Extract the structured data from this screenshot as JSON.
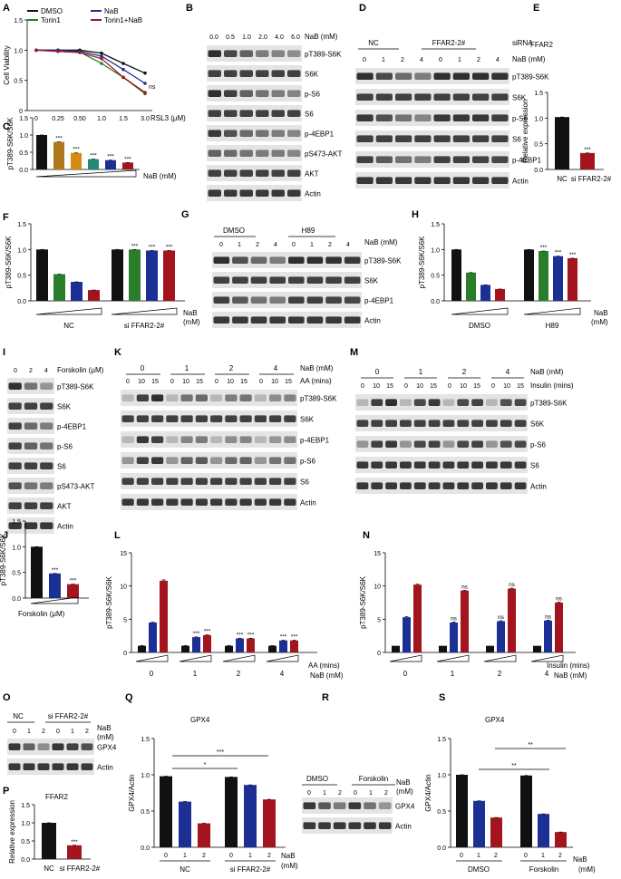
{
  "colors": {
    "black": "#111111",
    "blue": "#1c2f94",
    "red": "#a3141e",
    "green": "#2a7d2a",
    "brown": "#b07a1c",
    "teal": "#1f8a78",
    "gray": "#555555"
  },
  "panel_letters": {
    "A": "A",
    "B": "B",
    "C": "C",
    "D": "D",
    "E": "E",
    "F": "F",
    "G": "G",
    "H": "H",
    "I": "I",
    "J": "J",
    "K": "K",
    "L": "L",
    "M": "M",
    "N": "N",
    "O": "O",
    "P": "P",
    "Q": "Q",
    "R": "R",
    "S": "S"
  },
  "panelA": {
    "legend": [
      "DMSO",
      "Torin1",
      "NaB",
      "Torin1+NaB"
    ],
    "ylabel": "Cell Viability",
    "xlabel": "RSL3 (μM)",
    "ns": "ns",
    "chart_data": {
      "type": "line",
      "x": [
        "0",
        "0.25",
        "0.50",
        "1.0",
        "1.5",
        "3.0"
      ],
      "xlabel": "RSL3 (μM)",
      "ylabel": "Cell Viability",
      "ylim": [
        0,
        1.5
      ],
      "yticks": [
        "0",
        "0.5",
        "1.0",
        "1.5"
      ],
      "series": [
        {
          "name": "DMSO",
          "values": [
            1.0,
            1.0,
            1.0,
            0.95,
            0.78,
            0.62
          ]
        },
        {
          "name": "Torin1",
          "values": [
            1.0,
            0.98,
            0.97,
            0.78,
            0.55,
            0.28
          ]
        },
        {
          "name": "NaB",
          "values": [
            1.0,
            1.0,
            0.98,
            0.9,
            0.68,
            0.45
          ]
        },
        {
          "name": "Torin1+NaB",
          "values": [
            1.0,
            0.98,
            0.96,
            0.86,
            0.55,
            0.3
          ]
        }
      ]
    }
  },
  "panelB": {
    "header": [
      "0.0",
      "0.5",
      "1.0",
      "2.0",
      "4.0",
      "6.0"
    ],
    "unit": "NaB (mM)",
    "bands": [
      "pT389-S6K",
      "S6K",
      "p-S6",
      "S6",
      "p-4EBP1",
      "pS473-AKT",
      "AKT",
      "Actin"
    ]
  },
  "panelC": {
    "ylabel": "pT389-S6K/S6K",
    "xlabel": "NaB (mM)",
    "yticks": [
      "0.0",
      "0.5",
      "1.0",
      "1.5"
    ],
    "stars": [
      "***",
      "***",
      "***",
      "***",
      "***"
    ],
    "chart_data": {
      "type": "bar",
      "values": [
        1.0,
        0.8,
        0.48,
        0.3,
        0.27,
        0.2
      ],
      "ylim": [
        0,
        1.5
      ]
    }
  },
  "panelD": {
    "siRNA": "siRNA",
    "groups": [
      "NC",
      "FFAR2-2#"
    ],
    "unit": "NaB (mM)",
    "lanes": [
      "0",
      "1",
      "2",
      "4",
      "0",
      "1",
      "2",
      "4"
    ],
    "bands": [
      "pT389-S6K",
      "S6K",
      "p-S6",
      "S6",
      "p-4EBP1",
      "Actin"
    ]
  },
  "panelE": {
    "title": "FFAR2",
    "ylabel": "Relative expression",
    "yticks": [
      "0.0",
      "0.5",
      "1.0",
      "1.5"
    ],
    "categories": [
      "NC",
      "si FFAR2-2#"
    ],
    "stars": "***",
    "chart_data": {
      "type": "bar",
      "categories": [
        "NC",
        "si FFAR2-2#"
      ],
      "values": [
        1.02,
        0.32
      ],
      "ylim": [
        0,
        1.5
      ]
    }
  },
  "panelF": {
    "ylabel": "pT389-S6K/S6K",
    "yticks": [
      "0.0",
      "0.5",
      "1.0",
      "1.5"
    ],
    "groups": [
      "NC",
      "si FFAR2-2#"
    ],
    "unit1": "NaB",
    "unit2": "(mM)",
    "stars": [
      "***",
      "***",
      "***"
    ],
    "chart_data": {
      "type": "bar",
      "series": [
        {
          "name": "NC",
          "values": [
            1.0,
            0.52,
            0.37,
            0.21
          ]
        },
        {
          "name": "si FFAR2-2#",
          "values": [
            1.0,
            1.0,
            0.98,
            0.98
          ]
        }
      ],
      "ylim": [
        0,
        1.5
      ]
    }
  },
  "panelG": {
    "groups": [
      "DMSO",
      "H89"
    ],
    "unit": "NaB (mM)",
    "lanes": [
      "0",
      "1",
      "2",
      "4",
      "0",
      "1",
      "2",
      "4"
    ],
    "bands": [
      "pT389-S6K",
      "S6K",
      "p-4EBP1",
      "Actin"
    ]
  },
  "panelH": {
    "ylabel": "pT389-S6K/S6K",
    "yticks": [
      "0.0",
      "0.5",
      "1.0",
      "1.5"
    ],
    "groups": [
      "DMSO",
      "H89"
    ],
    "unit1": "NaB",
    "unit2": "(mM)",
    "stars": [
      "***",
      "***",
      "***"
    ],
    "chart_data": {
      "type": "bar",
      "series": [
        {
          "name": "DMSO",
          "values": [
            1.0,
            0.55,
            0.31,
            0.23
          ]
        },
        {
          "name": "H89",
          "values": [
            1.0,
            0.97,
            0.87,
            0.83
          ]
        }
      ],
      "ylim": [
        0,
        1.5
      ]
    }
  },
  "panelI": {
    "unit": "Forskolin (μM)",
    "lanes": [
      "0",
      "2",
      "4"
    ],
    "bands": [
      "pT389-S6K",
      "S6K",
      "p-4EBP1",
      "p-S6",
      "S6",
      "pS473-AKT",
      "AKT",
      "Actin"
    ]
  },
  "panelJ": {
    "ylabel": "pT389-S6K/S6K",
    "xlabel": "Forskolin (μM)",
    "yticks": [
      "0.0",
      "0.5",
      "1.0",
      "1.5"
    ],
    "stars": [
      "***",
      "***"
    ],
    "chart_data": {
      "type": "bar",
      "values": [
        1.0,
        0.48,
        0.27
      ],
      "ylim": [
        0,
        1.5
      ]
    }
  },
  "panelK": {
    "nab": [
      "0",
      "1",
      "2",
      "4"
    ],
    "nab_unit": "NaB (mM)",
    "aa_unit": "AA (mins)",
    "times": [
      "0",
      "10",
      "15"
    ],
    "bands": [
      "pT389-S6K",
      "S6K",
      "p-4EBP1",
      "p-S6",
      "S6",
      "Actin"
    ]
  },
  "panelL": {
    "ylabel": "pT389-S6K/S6K",
    "yticks": [
      "0",
      "5",
      "10",
      "15"
    ],
    "groups": [
      "0",
      "1",
      "2",
      "4"
    ],
    "unit1": "AA (mins)",
    "unit2": "NaB (mM)",
    "stars": [
      "***",
      "***",
      "***",
      "***",
      "***",
      "***"
    ],
    "chart_data": {
      "type": "bar",
      "categories": [
        "0",
        "1",
        "2",
        "4"
      ],
      "series": [
        {
          "name": "0 min",
          "values": [
            1,
            1,
            1,
            1
          ]
        },
        {
          "name": "10 min",
          "values": [
            4.5,
            2.3,
            2.1,
            1.8
          ]
        },
        {
          "name": "15 min",
          "values": [
            10.8,
            2.6,
            2.1,
            1.8
          ]
        }
      ],
      "ylim": [
        0,
        15
      ]
    }
  },
  "panelM": {
    "nab": [
      "0",
      "1",
      "2",
      "4"
    ],
    "nab_unit": "NaB (mM)",
    "ins_unit": "Insulin (mins)",
    "times": [
      "0",
      "10",
      "15"
    ],
    "bands": [
      "pT389-S6K",
      "S6K",
      "p-S6",
      "S6",
      "Actin"
    ]
  },
  "panelN": {
    "ylabel": "pT389-S6K/S6K",
    "yticks": [
      "0",
      "5",
      "10",
      "15"
    ],
    "groups": [
      "0",
      "1",
      "2",
      "4"
    ],
    "unit1": "Insulin (mins)",
    "unit2": "NaB (mM)",
    "ns": [
      "ns",
      "ns",
      "ns",
      "ns",
      "ns",
      "ns"
    ],
    "chart_data": {
      "type": "bar",
      "categories": [
        "0",
        "1",
        "2",
        "4"
      ],
      "series": [
        {
          "name": "0 min",
          "values": [
            1,
            1,
            1,
            1
          ]
        },
        {
          "name": "10 min",
          "values": [
            5.3,
            4.5,
            4.7,
            4.8
          ]
        },
        {
          "name": "15 min",
          "values": [
            10.2,
            9.3,
            9.6,
            7.5
          ]
        }
      ],
      "ylim": [
        0,
        15
      ]
    }
  },
  "panelO": {
    "groups": [
      "NC",
      "si FFAR2-2#"
    ],
    "lanes": [
      "0",
      "1",
      "2",
      "0",
      "1",
      "2"
    ],
    "unit1": "NaB",
    "unit2": "(mM)",
    "bands": [
      "GPX4",
      "Actin"
    ]
  },
  "panelP": {
    "title": "FFAR2",
    "ylabel": "Relative expression",
    "yticks": [
      "0.0",
      "0.5",
      "1.0",
      "1.5"
    ],
    "categories": [
      "NC",
      "si FFAR2-2#"
    ],
    "stars": "***",
    "chart_data": {
      "type": "bar",
      "categories": [
        "NC",
        "si FFAR2-2#"
      ],
      "values": [
        1.0,
        0.38
      ],
      "ylim": [
        0,
        1.5
      ]
    }
  },
  "panelQ": {
    "title": "GPX4",
    "ylabel": "GPX4/Actin",
    "yticks": [
      "0.0",
      "0.5",
      "1.0",
      "1.5"
    ],
    "lanes": [
      "0",
      "1",
      "2",
      "0",
      "1",
      "2"
    ],
    "groups": [
      "NC",
      "si FFAR2-2#"
    ],
    "unit1": "NaB",
    "unit2": "(mM)",
    "sig": [
      "*",
      "***"
    ],
    "chart_data": {
      "type": "bar",
      "series": [
        {
          "name": "NC",
          "values": [
            0.98,
            0.63,
            0.33
          ]
        },
        {
          "name": "si FFAR2-2#",
          "values": [
            0.97,
            0.86,
            0.66
          ]
        }
      ],
      "ylim": [
        0,
        1.5
      ]
    }
  },
  "panelR": {
    "groups": [
      "DMSO",
      "Forskolin"
    ],
    "lanes": [
      "0",
      "1",
      "2",
      "0",
      "1",
      "2"
    ],
    "unit1": "NaB",
    "unit2": "(mM)",
    "bands": [
      "GPX4",
      "Actin"
    ]
  },
  "panelS": {
    "title": "GPX4",
    "ylabel": "GPX4/Actin",
    "yticks": [
      "0.0",
      "0.5",
      "1.0",
      "1.5"
    ],
    "lanes": [
      "0",
      "1",
      "2",
      "0",
      "1",
      "2"
    ],
    "groups": [
      "DMSO",
      "Forskolin"
    ],
    "unit1": "NaB",
    "unit2": "(mM)",
    "sig": [
      "**",
      "**"
    ],
    "chart_data": {
      "type": "bar",
      "series": [
        {
          "name": "DMSO",
          "values": [
            1.0,
            0.64,
            0.41
          ]
        },
        {
          "name": "Forskolin",
          "values": [
            0.99,
            0.46,
            0.21
          ]
        }
      ],
      "ylim": [
        0,
        1.5
      ]
    }
  }
}
